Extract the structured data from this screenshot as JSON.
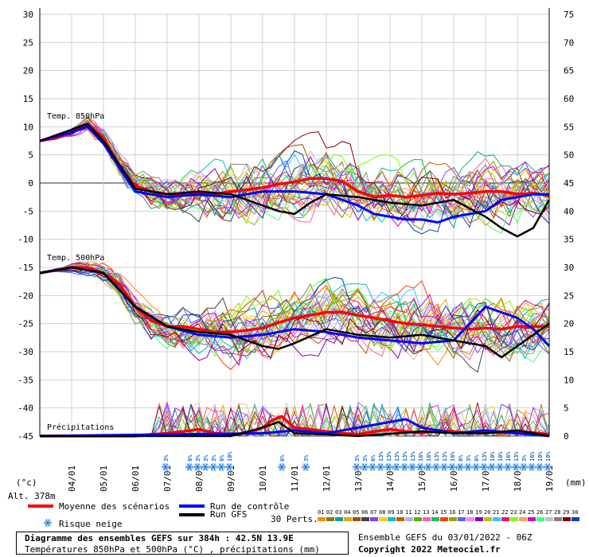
{
  "chart_data": {
    "type": "line",
    "title": "Diagramme des ensembles GEFS sur 384h : 42.5N 13.9E",
    "subtitle": "Températures 850hPa et 500hPa (°C) , précipitations (mm)",
    "left_axis_label": "(°c)",
    "right_axis_label": "(mm)",
    "altitude_label": "Alt. 378m",
    "left_ticks": [
      30,
      25,
      20,
      15,
      10,
      5,
      0,
      -5,
      -10,
      -15,
      -20,
      -25,
      -30,
      -35,
      -40,
      -45
    ],
    "right_ticks": [
      75,
      70,
      65,
      60,
      55,
      50,
      45,
      40,
      35,
      30,
      25,
      20,
      15,
      10,
      5,
      0
    ],
    "ylim": [
      -45,
      30
    ],
    "xlim_days": [
      3.0,
      19.0
    ],
    "x_ticks": [
      "04/01",
      "05/01",
      "06/01",
      "07/01",
      "08/01",
      "09/01",
      "10/01",
      "11/01",
      "12/01",
      "13/01",
      "14/01",
      "15/01",
      "16/01",
      "17/01",
      "18/01",
      "19/01"
    ],
    "panel_labels": {
      "t850": "Temp. 850hPa",
      "t500": "Temp. 500hPa",
      "precip": "Précipitations"
    },
    "series": [
      {
        "name": "Moyenne des scénarios",
        "color": "#ff0000",
        "t850": [
          [
            3.0,
            7.5
          ],
          [
            3.5,
            8
          ],
          [
            4.0,
            9
          ],
          [
            4.5,
            10.5
          ],
          [
            5.0,
            8
          ],
          [
            5.5,
            3
          ],
          [
            6.0,
            -0.5
          ],
          [
            6.5,
            -1.5
          ],
          [
            7.0,
            -2
          ],
          [
            7.5,
            -2
          ],
          [
            8.0,
            -1.8
          ],
          [
            8.5,
            -2
          ],
          [
            9.0,
            -1.5
          ],
          [
            9.5,
            -1.2
          ],
          [
            10.0,
            -0.8
          ],
          [
            10.5,
            -0.2
          ],
          [
            11.0,
            0.2
          ],
          [
            11.5,
            0.8
          ],
          [
            12.0,
            0.8
          ],
          [
            12.5,
            0.3
          ],
          [
            13.0,
            -1.5
          ],
          [
            13.5,
            -2.5
          ],
          [
            14.0,
            -2.2
          ],
          [
            14.5,
            -2.5
          ],
          [
            15.0,
            -2.2
          ],
          [
            15.5,
            -1.8
          ],
          [
            16.0,
            -2
          ],
          [
            16.5,
            -1.8
          ],
          [
            17.0,
            -1.5
          ],
          [
            17.5,
            -1.5
          ],
          [
            18.0,
            -2
          ],
          [
            18.5,
            -1.8
          ],
          [
            19.0,
            -2.3
          ]
        ],
        "t500": [
          [
            3.0,
            -16
          ],
          [
            3.5,
            -15.5
          ],
          [
            4.0,
            -15
          ],
          [
            4.5,
            -15
          ],
          [
            5.0,
            -16
          ],
          [
            5.5,
            -18
          ],
          [
            6.0,
            -22
          ],
          [
            6.5,
            -24.5
          ],
          [
            7.0,
            -25.5
          ],
          [
            7.5,
            -25.5
          ],
          [
            8.0,
            -26
          ],
          [
            8.5,
            -26.5
          ],
          [
            9.0,
            -26.5
          ],
          [
            9.5,
            -26.2
          ],
          [
            10.0,
            -25.8
          ],
          [
            10.5,
            -24.8
          ],
          [
            11.0,
            -24
          ],
          [
            11.5,
            -23.5
          ],
          [
            12.0,
            -23
          ],
          [
            12.5,
            -23
          ],
          [
            13.0,
            -23.5
          ],
          [
            13.5,
            -24
          ],
          [
            14.0,
            -24.5
          ],
          [
            14.5,
            -25
          ],
          [
            15.0,
            -25.2
          ],
          [
            15.5,
            -25.5
          ],
          [
            16.0,
            -25.8
          ],
          [
            16.5,
            -26
          ],
          [
            17.0,
            -25.8
          ],
          [
            17.5,
            -26
          ],
          [
            18.0,
            -25.5
          ],
          [
            18.5,
            -25.5
          ],
          [
            19.0,
            -25.5
          ]
        ],
        "precip_mm": [
          [
            3.0,
            0
          ],
          [
            6.0,
            0
          ],
          [
            6.5,
            0.3
          ],
          [
            7.0,
            0.5
          ],
          [
            7.5,
            0.8
          ],
          [
            8.0,
            1.2
          ],
          [
            8.5,
            0.5
          ],
          [
            9.0,
            0.3
          ],
          [
            9.5,
            0.5
          ],
          [
            10.0,
            1.5
          ],
          [
            10.3,
            2.8
          ],
          [
            10.6,
            3.5
          ],
          [
            11.0,
            1.5
          ],
          [
            11.5,
            1.2
          ],
          [
            12.0,
            0.8
          ],
          [
            12.5,
            0.5
          ],
          [
            13.0,
            0.3
          ],
          [
            13.5,
            0.8
          ],
          [
            14.0,
            1.2
          ],
          [
            14.5,
            0.8
          ],
          [
            15.0,
            0.5
          ],
          [
            15.5,
            1
          ],
          [
            16.0,
            0.8
          ],
          [
            16.5,
            0.5
          ],
          [
            17.0,
            0.8
          ],
          [
            17.5,
            0.5
          ],
          [
            18.0,
            0.8
          ],
          [
            18.5,
            0.6
          ],
          [
            19.0,
            0.3
          ]
        ]
      },
      {
        "name": "Run de contrôle",
        "color": "#0000ff",
        "t850": [
          [
            3.0,
            7.5
          ],
          [
            4.0,
            9
          ],
          [
            4.5,
            10
          ],
          [
            5.0,
            7
          ],
          [
            6.0,
            -1.5
          ],
          [
            7.0,
            -2.5
          ],
          [
            8.0,
            -2
          ],
          [
            9.0,
            -2.5
          ],
          [
            10.0,
            -1.5
          ],
          [
            11.0,
            -1.5
          ],
          [
            12.0,
            -2
          ],
          [
            13.0,
            -4
          ],
          [
            13.5,
            -5.5
          ],
          [
            14.0,
            -6
          ],
          [
            14.5,
            -6.5
          ],
          [
            15.0,
            -6.5
          ],
          [
            15.5,
            -7
          ],
          [
            16.0,
            -6
          ],
          [
            16.5,
            -5.5
          ],
          [
            17.0,
            -5
          ],
          [
            17.5,
            -3
          ],
          [
            18.0,
            -2.5
          ],
          [
            18.5,
            -2
          ],
          [
            19.0,
            -2
          ]
        ],
        "t500": [
          [
            3.0,
            -16
          ],
          [
            4.0,
            -15
          ],
          [
            5.0,
            -16
          ],
          [
            6.0,
            -22
          ],
          [
            7.0,
            -25.5
          ],
          [
            8.0,
            -27
          ],
          [
            9.0,
            -27.5
          ],
          [
            10.0,
            -27
          ],
          [
            11.0,
            -26
          ],
          [
            12.0,
            -26.5
          ],
          [
            13.0,
            -27.5
          ],
          [
            14.0,
            -28
          ],
          [
            15.0,
            -28.5
          ],
          [
            16.0,
            -28
          ],
          [
            16.5,
            -25
          ],
          [
            17.0,
            -22
          ],
          [
            17.5,
            -23
          ],
          [
            18.0,
            -24
          ],
          [
            18.5,
            -26
          ],
          [
            19.0,
            -29
          ]
        ],
        "precip_mm": [
          [
            3.0,
            0
          ],
          [
            10.0,
            0.5
          ],
          [
            11.0,
            1
          ],
          [
            12.0,
            0.5
          ],
          [
            14.0,
            2.5
          ],
          [
            14.5,
            3
          ],
          [
            15.0,
            1.5
          ],
          [
            16.0,
            0.5
          ],
          [
            17.0,
            1
          ],
          [
            18.0,
            0.5
          ],
          [
            19.0,
            0
          ]
        ]
      },
      {
        "name": "Run GFS",
        "color": "#000000",
        "t850": [
          [
            3.0,
            7.5
          ],
          [
            4.0,
            9.5
          ],
          [
            4.5,
            10.5
          ],
          [
            5.0,
            7.5
          ],
          [
            6.0,
            -1
          ],
          [
            7.0,
            -2
          ],
          [
            8.0,
            -1.5
          ],
          [
            9.0,
            -2
          ],
          [
            9.5,
            -3
          ],
          [
            10.0,
            -4
          ],
          [
            10.5,
            -5
          ],
          [
            11.0,
            -5.5
          ],
          [
            11.5,
            -3.5
          ],
          [
            12.0,
            -2
          ],
          [
            13.0,
            -2.5
          ],
          [
            14.0,
            -3.5
          ],
          [
            15.0,
            -4
          ],
          [
            16.0,
            -3
          ],
          [
            16.5,
            -4.5
          ],
          [
            17.0,
            -6
          ],
          [
            17.5,
            -8
          ],
          [
            18.0,
            -9.5
          ],
          [
            18.5,
            -8
          ],
          [
            19.0,
            -3
          ]
        ],
        "t500": [
          [
            3.0,
            -16
          ],
          [
            4.0,
            -15
          ],
          [
            5.0,
            -16
          ],
          [
            6.0,
            -22
          ],
          [
            7.0,
            -25.5
          ],
          [
            8.0,
            -26.5
          ],
          [
            9.0,
            -27
          ],
          [
            10.0,
            -29
          ],
          [
            10.5,
            -29.5
          ],
          [
            11.0,
            -28.5
          ],
          [
            12.0,
            -26
          ],
          [
            13.0,
            -27
          ],
          [
            14.0,
            -27.5
          ],
          [
            15.0,
            -27
          ],
          [
            16.0,
            -28
          ],
          [
            17.0,
            -29
          ],
          [
            17.5,
            -31
          ],
          [
            18.0,
            -29
          ],
          [
            18.5,
            -27
          ],
          [
            19.0,
            -25
          ]
        ],
        "precip_mm": [
          [
            3.0,
            0
          ],
          [
            9.0,
            0
          ],
          [
            10.0,
            1.5
          ],
          [
            10.5,
            2.5
          ],
          [
            11.0,
            0.5
          ],
          [
            12.0,
            0.3
          ],
          [
            13.0,
            0
          ],
          [
            15.0,
            0.8
          ],
          [
            16.0,
            0.5
          ],
          [
            17.0,
            0.5
          ],
          [
            18.0,
            1
          ],
          [
            19.0,
            0
          ]
        ]
      }
    ],
    "snow_risk_label": "Risque neige",
    "snow_risk": [
      {
        "x": 6.95,
        "pct": "3%"
      },
      {
        "x": 7.7,
        "pct": "6%"
      },
      {
        "x": 7.95,
        "pct": "3%"
      },
      {
        "x": 8.2,
        "pct": "3%"
      },
      {
        "x": 8.45,
        "pct": "3%"
      },
      {
        "x": 8.7,
        "pct": "6%"
      },
      {
        "x": 8.95,
        "pct": "10%"
      },
      {
        "x": 10.6,
        "pct": "6%"
      },
      {
        "x": 11.35,
        "pct": "3%"
      },
      {
        "x": 12.95,
        "pct": "3%"
      },
      {
        "x": 13.2,
        "pct": "3%"
      },
      {
        "x": 13.45,
        "pct": "6%"
      },
      {
        "x": 13.7,
        "pct": "13%"
      },
      {
        "x": 13.95,
        "pct": "13%"
      },
      {
        "x": 14.2,
        "pct": "13%"
      },
      {
        "x": 14.45,
        "pct": "13%"
      },
      {
        "x": 14.7,
        "pct": "13%"
      },
      {
        "x": 14.95,
        "pct": "16%"
      },
      {
        "x": 15.2,
        "pct": "16%"
      },
      {
        "x": 15.45,
        "pct": "13%"
      },
      {
        "x": 15.7,
        "pct": "13%"
      },
      {
        "x": 15.95,
        "pct": "16%"
      },
      {
        "x": 16.2,
        "pct": "6%"
      },
      {
        "x": 16.45,
        "pct": "3%"
      },
      {
        "x": 16.7,
        "pct": "6%"
      },
      {
        "x": 16.95,
        "pct": "13%"
      },
      {
        "x": 17.2,
        "pct": "10%"
      },
      {
        "x": 17.45,
        "pct": "10%"
      },
      {
        "x": 17.7,
        "pct": "16%"
      },
      {
        "x": 17.95,
        "pct": "13%"
      },
      {
        "x": 18.2,
        "pct": "3%"
      },
      {
        "x": 18.45,
        "pct": "16%"
      },
      {
        "x": 18.7,
        "pct": "10%"
      },
      {
        "x": 18.95,
        "pct": "10%"
      }
    ],
    "legend": {
      "mean": "Moyenne des scénarios",
      "control": "Run de contrôle",
      "gfs": "Run GFS",
      "snow": "Risque neige",
      "perts_label": "30 Perts."
    },
    "perturbation_colors": [
      "#ff8c00",
      "#808000",
      "#00a0a0",
      "#d4b000",
      "#a05000",
      "#404040",
      "#8040ff",
      "#ffd000",
      "#00c0c0",
      "#c06000",
      "#b0b0ff",
      "#60b000",
      "#ff60b0",
      "#00c060",
      "#ff4000",
      "#a0a000",
      "#6060ff",
      "#ff80ff",
      "#8000c0",
      "#c0c000",
      "#40c0ff",
      "#ff0080",
      "#80ff00",
      "#ffa060",
      "#d000d0",
      "#40ff80",
      "#c0c0c0",
      "#808080",
      "#800000",
      "#0040c0"
    ],
    "perturbation_labels": [
      "01",
      "02",
      "03",
      "04",
      "05",
      "06",
      "07",
      "08",
      "09",
      "10",
      "11",
      "12",
      "13",
      "14",
      "15",
      "16",
      "17",
      "18",
      "19",
      "20",
      "21",
      "22",
      "23",
      "24",
      "25",
      "26",
      "27",
      "28",
      "29",
      "30"
    ]
  },
  "footer": {
    "title": "Diagramme des ensembles GEFS sur 384h : 42.5N 13.9E",
    "subtitle": "Températures 850hPa et 500hPa (°C) , précipitations (mm)",
    "run_info": "Ensemble GEFS du 03/01/2022 - 06Z",
    "copyright": "Copyright 2022 Meteociel.fr"
  }
}
